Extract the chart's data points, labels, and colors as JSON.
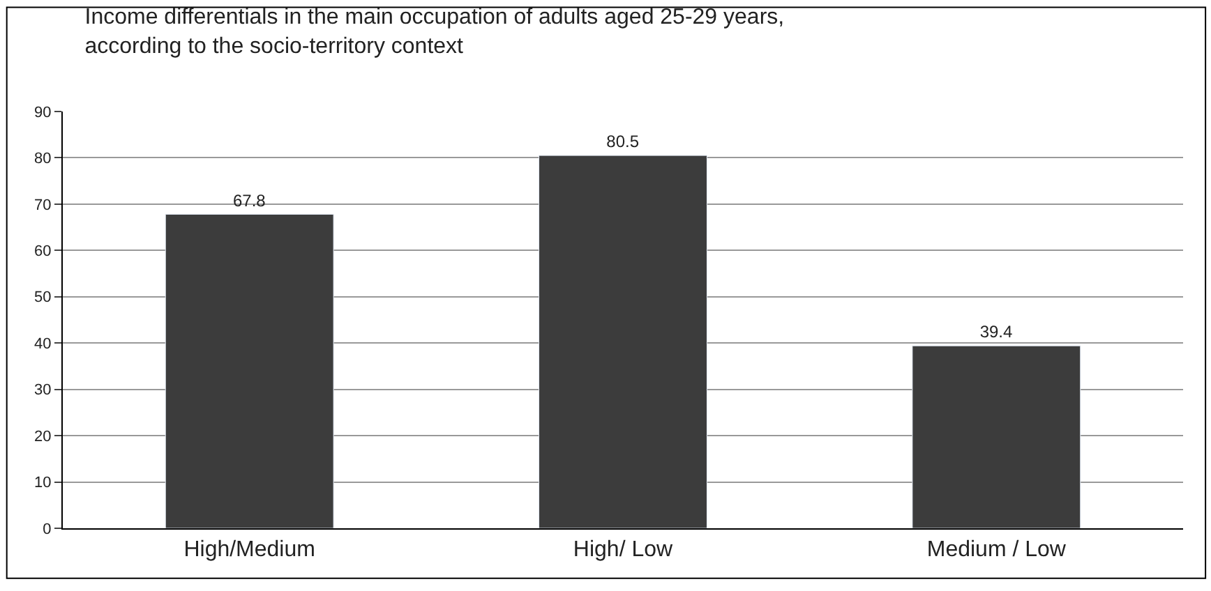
{
  "chart_data": {
    "type": "bar",
    "title": "Income differentials in the main occupation of adults aged 25-29 years,\naccording to the socio-territory context",
    "categories": [
      "High/Medium",
      "High/ Low",
      "Medium / Low"
    ],
    "values": [
      67.8,
      80.5,
      39.4
    ],
    "color": "#3c3c3c",
    "ylim": [
      0,
      90
    ],
    "yticks": [
      0,
      10,
      20,
      30,
      40,
      50,
      60,
      70,
      80,
      90
    ],
    "grid": "y",
    "data_labels": true
  }
}
